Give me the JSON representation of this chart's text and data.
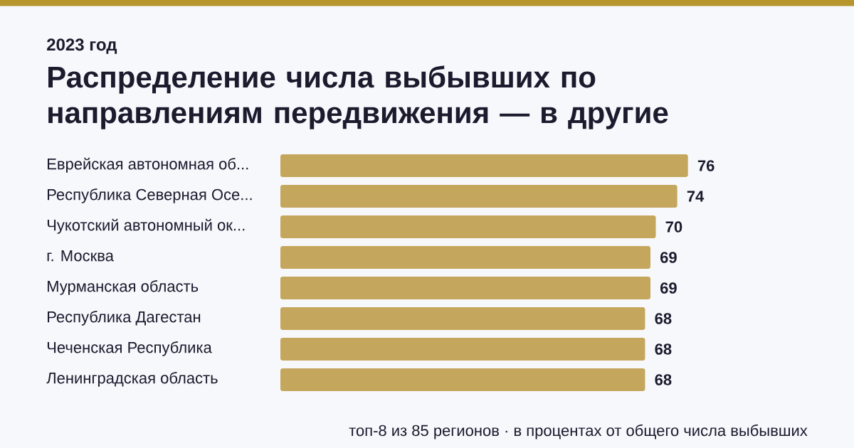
{
  "chart_data": {
    "type": "bar",
    "orientation": "horizontal",
    "subtitle": "2023 год",
    "title": "Распределение числа выбывших по направлениям передвижения — в другие",
    "categories": [
      "Еврейская автономная об...",
      "Республика Северная Осе...",
      "Чукотский автономный ок...",
      "г. Москва",
      "Мурманская область",
      "Республика Дагестан",
      "Чеченская Республика",
      "Ленинградская область"
    ],
    "values": [
      76,
      74,
      70,
      69,
      69,
      68,
      68,
      68
    ],
    "color": "#c4a75c",
    "data_labels": true,
    "annotations": [
      "топ-8 из 85 регионов · в процентах от общего числа выбывших"
    ]
  }
}
